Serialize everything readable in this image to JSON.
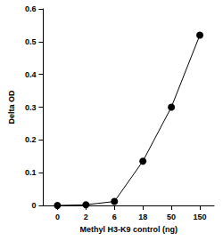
{
  "chart_data": {
    "type": "line",
    "x_label": "Methyl H3-K9 control (ng)",
    "y_label": "Delta OD",
    "categories": [
      "0",
      "2",
      "6",
      "18",
      "50",
      "150"
    ],
    "values": [
      0,
      0.002,
      0.012,
      0.135,
      0.3,
      0.52
    ],
    "color": "#000000",
    "marker": "circle",
    "line_style": "solid",
    "ylim": [
      0,
      0.6
    ],
    "yticks": [
      0,
      0.1,
      0.2,
      0.3,
      0.4,
      0.5,
      0.6
    ],
    "grid": false
  }
}
